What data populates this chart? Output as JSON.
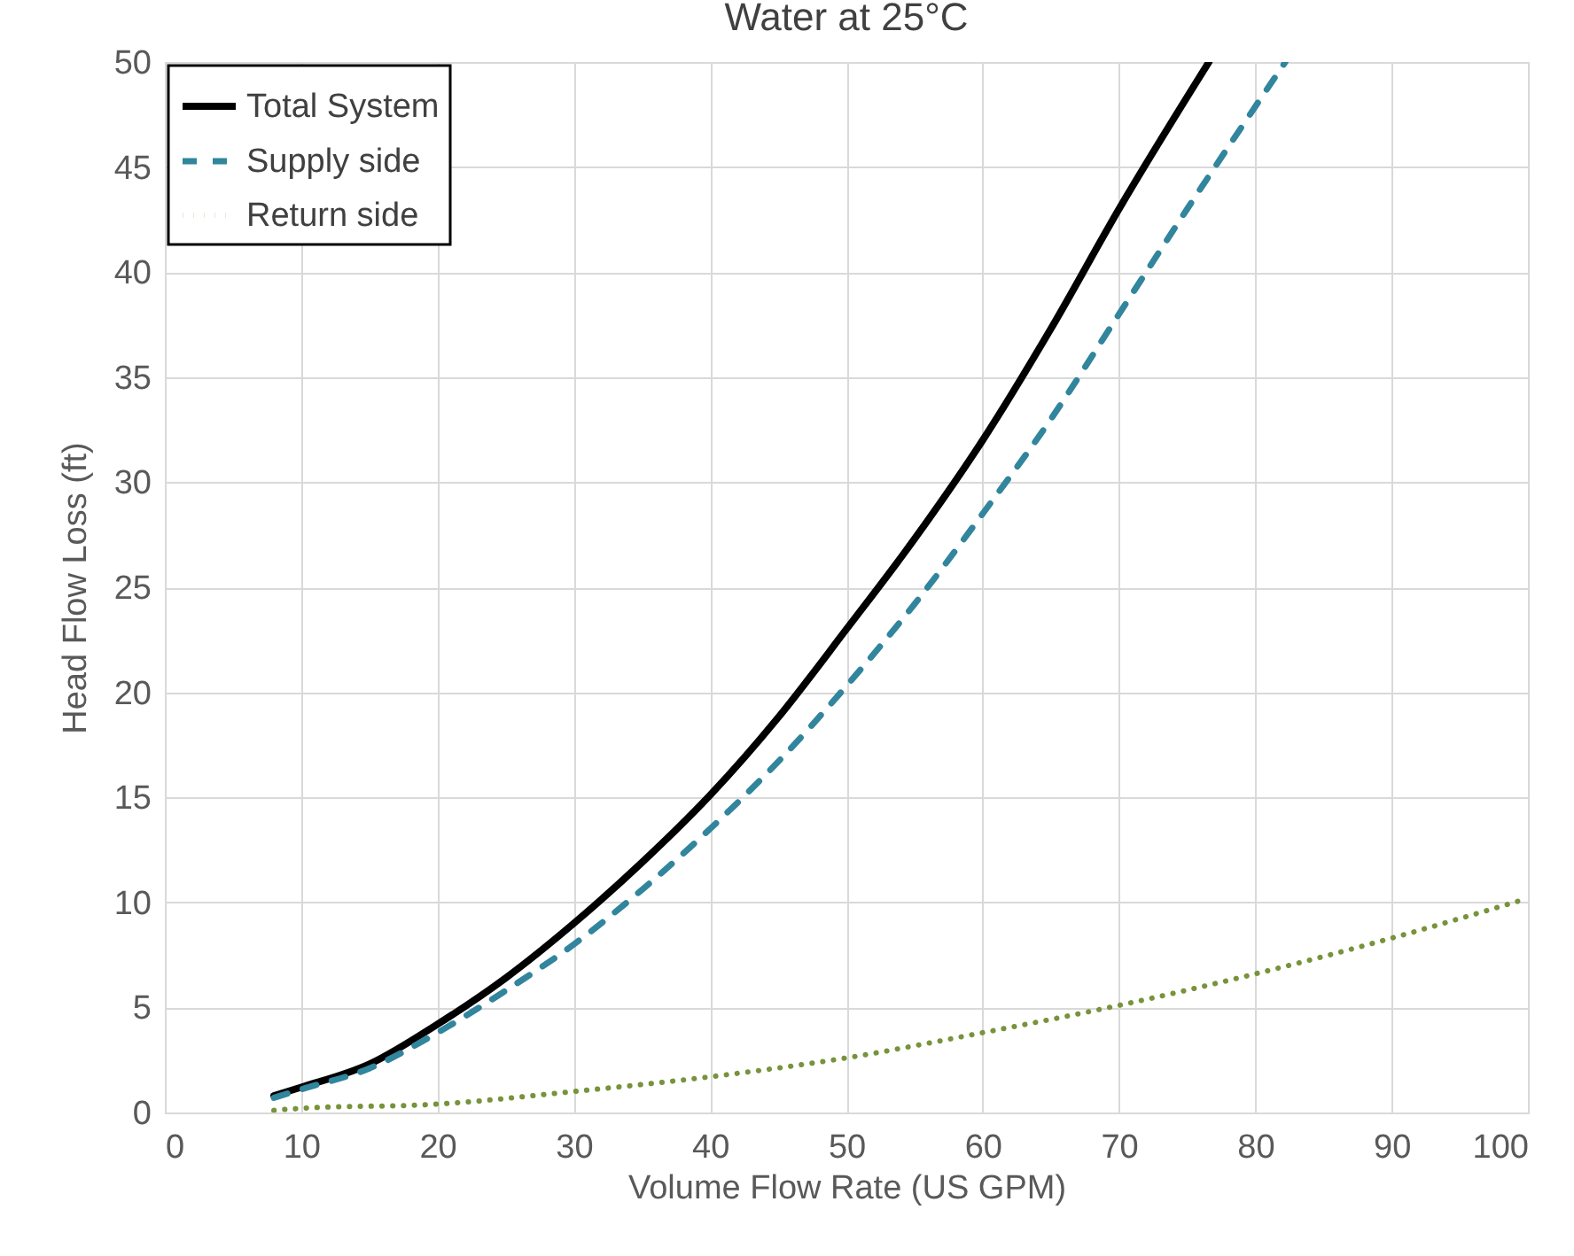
{
  "chart_data": {
    "type": "line",
    "title": "Water at 25°C",
    "xlabel": "Volume Flow Rate (US GPM)",
    "ylabel": "Head Flow Loss (ft)",
    "xlim": [
      0,
      100
    ],
    "xticks": [
      0,
      10,
      20,
      30,
      40,
      50,
      60,
      70,
      80,
      90,
      100
    ],
    "ylim": [
      0,
      50
    ],
    "yticks": [
      0,
      5,
      10,
      15,
      20,
      25,
      30,
      35,
      40,
      45,
      50
    ],
    "grid": true,
    "legend": "top left",
    "series": [
      {
        "name": "Total System",
        "color": "#000000",
        "line_style": "solid",
        "x": [
          8,
          10,
          15,
          20,
          25,
          30,
          35,
          40,
          45,
          50,
          55,
          60,
          65,
          70,
          76.6
        ],
        "values": [
          0.8,
          1.2,
          2.3,
          4.2,
          6.4,
          9,
          11.9,
          15.1,
          18.8,
          23,
          27.3,
          32,
          37.3,
          43,
          50
        ]
      },
      {
        "name": "Supply side",
        "color": "#31859c",
        "line_style": "dashed",
        "x": [
          8,
          10,
          15,
          20,
          25,
          30,
          35,
          40,
          45,
          50,
          55,
          60,
          65,
          70,
          75,
          82.2
        ],
        "values": [
          0.7,
          1.1,
          2.1,
          3.8,
          5.8,
          8,
          10.6,
          13.5,
          16.7,
          20.3,
          24.2,
          28.5,
          33,
          38,
          43,
          50
        ]
      },
      {
        "name": "Return side",
        "color": "#77933c",
        "line_style": "dotted",
        "x": [
          8,
          10,
          20,
          30,
          40,
          50,
          60,
          70,
          80,
          90,
          100
        ],
        "values": [
          0.1,
          0.2,
          0.4,
          1.0,
          1.7,
          2.6,
          3.8,
          5.1,
          6.6,
          8.3,
          10.2
        ]
      }
    ]
  }
}
